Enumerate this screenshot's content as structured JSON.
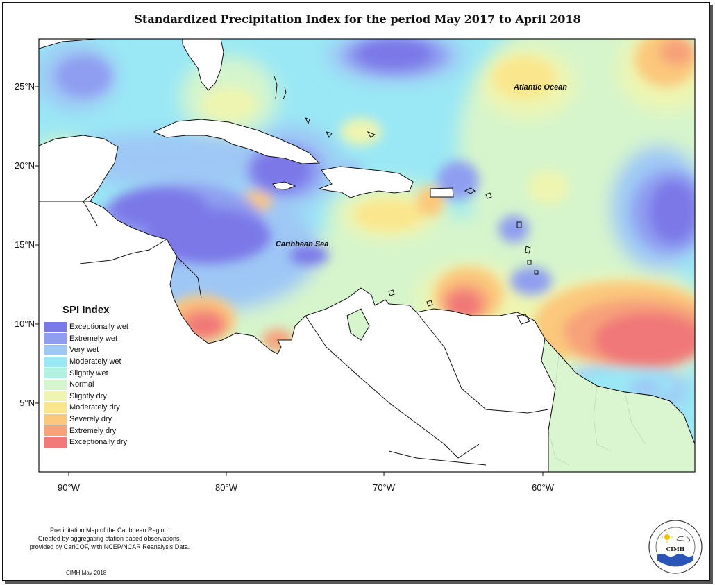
{
  "map": {
    "title": "Standardized Precipitation Index for the period May 2017 to April 2018",
    "lat_ticks": [
      "25°N",
      "20°N",
      "15°N",
      "10°N",
      "5°N"
    ],
    "lon_ticks": [
      "90°W",
      "80°W",
      "70°W",
      "60°W"
    ],
    "labels": {
      "atlantic": "Atlantic Ocean",
      "caribbean": "Caribbean Sea"
    },
    "legend": {
      "title": "SPI Index",
      "items": [
        {
          "label": "Exceptionally wet",
          "color": "#7b78e8"
        },
        {
          "label": "Extremely wet",
          "color": "#8f9ef0"
        },
        {
          "label": "Very wet",
          "color": "#9ec7f5"
        },
        {
          "label": "Moderately wet",
          "color": "#9ae8f5"
        },
        {
          "label": "Slightly wet",
          "color": "#b4f0e0"
        },
        {
          "label": "Normal",
          "color": "#d6f5cc"
        },
        {
          "label": "Slightly dry",
          "color": "#eef5b0"
        },
        {
          "label": "Moderately dry",
          "color": "#fae68c"
        },
        {
          "label": "Severely dry",
          "color": "#fbc87c"
        },
        {
          "label": "Extremely dry",
          "color": "#f7a27a"
        },
        {
          "label": "Exceptionally dry",
          "color": "#f07878"
        }
      ]
    },
    "note": [
      "Precipitation Map of the Caribbean Region.",
      "Created by aggregating station based observations,",
      "provided by CariCOF, with NCEP/NCAR Reanalysis Data."
    ],
    "credit": "CIMH May-2018",
    "logo": {
      "text": "CIMH",
      "name": "Caribbean Institute for Meteorology and Hydrology"
    }
  }
}
